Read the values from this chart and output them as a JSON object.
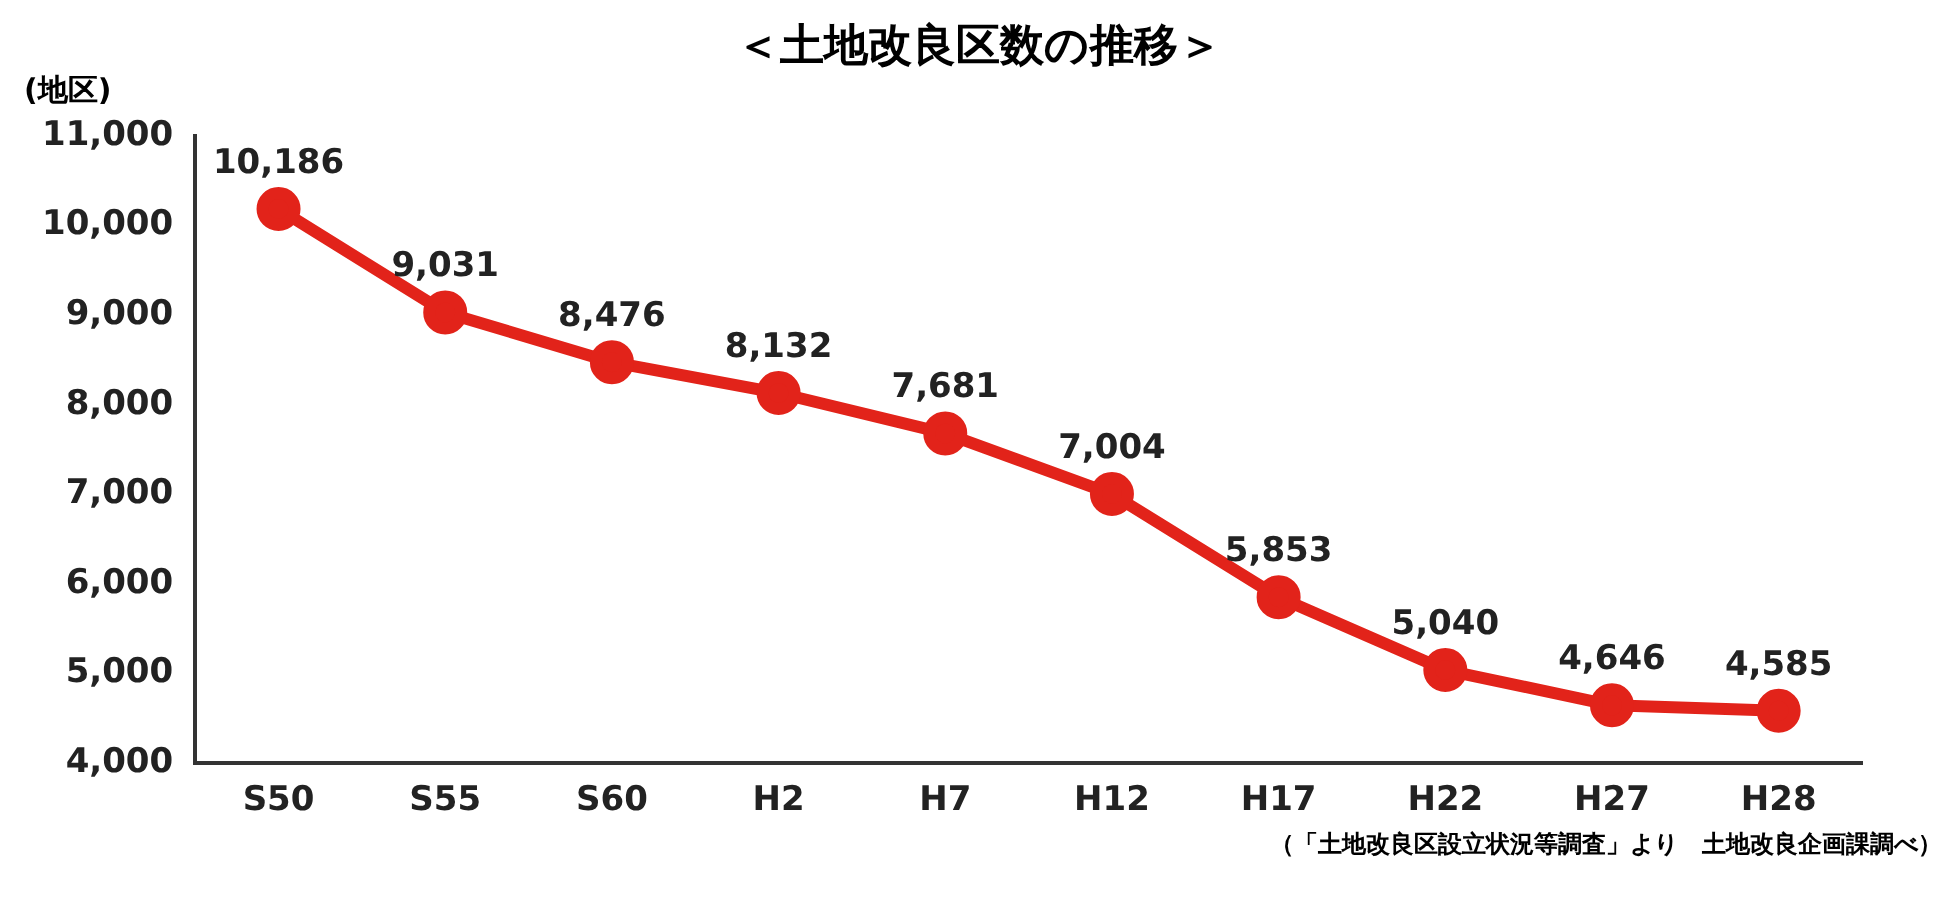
{
  "chart_data": {
    "type": "line",
    "title": "＜土地改良区数の推移＞",
    "ylabel": "(地区)",
    "categories": [
      "S50",
      "S55",
      "S60",
      "H2",
      "H7",
      "H12",
      "H17",
      "H22",
      "H27",
      "H28"
    ],
    "series": [
      {
        "color": "#e2231a",
        "values": [
          10186,
          9031,
          8476,
          8132,
          7681,
          7004,
          5853,
          5040,
          4646,
          4585
        ],
        "value_labels": [
          "10,186",
          "9,031",
          "8,476",
          "8,132",
          "7,681",
          "7,004",
          "5,853",
          "5,040",
          "4,646",
          "4,585"
        ]
      }
    ],
    "ylim": [
      4000,
      11000
    ],
    "yticks": [
      {
        "value": 4000,
        "label": "4,000"
      },
      {
        "value": 5000,
        "label": "5,000"
      },
      {
        "value": 6000,
        "label": "6,000"
      },
      {
        "value": 7000,
        "label": "7,000"
      },
      {
        "value": 8000,
        "label": "8,000"
      },
      {
        "value": 9000,
        "label": "9,000"
      },
      {
        "value": 10000,
        "label": "10,000"
      },
      {
        "value": 11000,
        "label": "11,000"
      }
    ],
    "annotations": [
      "（「土地改良区設立状況等調査」より　土地改良企画課調べ）"
    ],
    "marker": "circle",
    "line_style": "solid",
    "grid": false,
    "legend": false
  }
}
